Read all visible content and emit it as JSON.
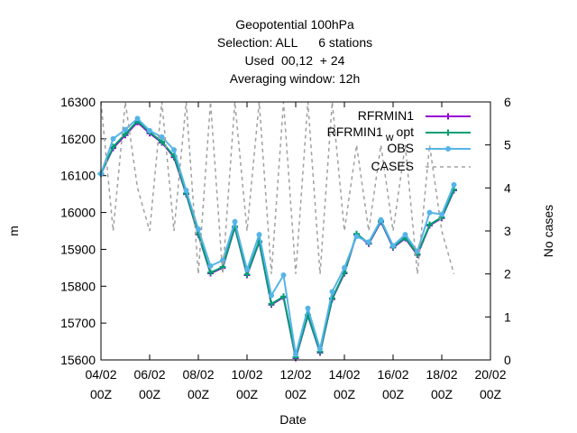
{
  "chart_data": {
    "type": "line",
    "title_lines": [
      "Geopotential 100hPa",
      "Selection: ALL      6 stations",
      "Used  00,12  + 24",
      "Averaging window: 12h"
    ],
    "xlabel": "Date",
    "ylabel": "m",
    "y2label": "No cases",
    "ylim": [
      15600,
      16300
    ],
    "y2lim": [
      0,
      6
    ],
    "xlim": [
      0,
      32
    ],
    "yticks": [
      15600,
      15700,
      15800,
      15900,
      16000,
      16100,
      16200,
      16300
    ],
    "y2ticks": [
      0,
      1,
      2,
      3,
      4,
      5,
      6
    ],
    "xticks": [
      {
        "pos": 0,
        "line1": "04/02",
        "line2": "00Z"
      },
      {
        "pos": 4,
        "line1": "06/02",
        "line2": "00Z"
      },
      {
        "pos": 8,
        "line1": "08/02",
        "line2": "00Z"
      },
      {
        "pos": 12,
        "line1": "10/02",
        "line2": "00Z"
      },
      {
        "pos": 16,
        "line1": "12/02",
        "line2": "00Z"
      },
      {
        "pos": 20,
        "line1": "14/02",
        "line2": "00Z"
      },
      {
        "pos": 24,
        "line1": "16/02",
        "line2": "00Z"
      },
      {
        "pos": 28,
        "line1": "18/02",
        "line2": "00Z"
      },
      {
        "pos": 32,
        "line1": "20/02",
        "line2": "00Z"
      }
    ],
    "legend_position": "top-right",
    "x": [
      0,
      1,
      2,
      3,
      4,
      5,
      6,
      7,
      8,
      9,
      10,
      11,
      12,
      13,
      14,
      15,
      16,
      17,
      18,
      19,
      20,
      21,
      22,
      23,
      24,
      25,
      26,
      27,
      28,
      29
    ],
    "series": [
      {
        "name": "RFRMIN1",
        "color": "#9400d3",
        "marker": "plus",
        "values": [
          16105,
          16175,
          16210,
          16245,
          16215,
          16190,
          16150,
          16050,
          15940,
          15835,
          15850,
          15960,
          15830,
          15920,
          15750,
          15770,
          15605,
          15720,
          15620,
          15765,
          15835,
          15940,
          15915,
          15975,
          15905,
          15930,
          15885,
          15965,
          15985,
          16060
        ]
      },
      {
        "name": "RFRMIN1 w opt",
        "color": "#009e73",
        "marker": "plus",
        "values": [
          16105,
          16178,
          16213,
          16248,
          16218,
          16192,
          16153,
          16052,
          15942,
          15837,
          15852,
          15962,
          15832,
          15922,
          15752,
          15772,
          15607,
          15722,
          15622,
          15767,
          15837,
          15942,
          15917,
          15977,
          15907,
          15932,
          15887,
          15967,
          15987,
          16062
        ]
      },
      {
        "name": "OBS",
        "color": "#56b4e9",
        "marker": "circle",
        "values": [
          16105,
          16200,
          16225,
          16255,
          16222,
          16205,
          16170,
          16060,
          15955,
          15855,
          15870,
          15975,
          15845,
          15940,
          15775,
          15830,
          15615,
          15740,
          15630,
          15785,
          15850,
          15935,
          15920,
          15980,
          15910,
          15940,
          15895,
          16000,
          15995,
          16075
        ]
      },
      {
        "name": "CASES",
        "color": "#a0a0a0",
        "dashed": true,
        "axis": "y2",
        "values": [
          6,
          3,
          6,
          4,
          3,
          6,
          3,
          6,
          2,
          6,
          2,
          6,
          3,
          6,
          2,
          6,
          2,
          6,
          2,
          6,
          3,
          5,
          3,
          5,
          3,
          5,
          2,
          5,
          3,
          2
        ]
      }
    ],
    "legend_text": {
      "rfrmin1": "RFRMIN1",
      "wopt_main": "RFRMIN1",
      "wopt_sub": "w",
      "wopt_tail": "opt",
      "obs": "OBS",
      "cases": "CASES"
    }
  }
}
